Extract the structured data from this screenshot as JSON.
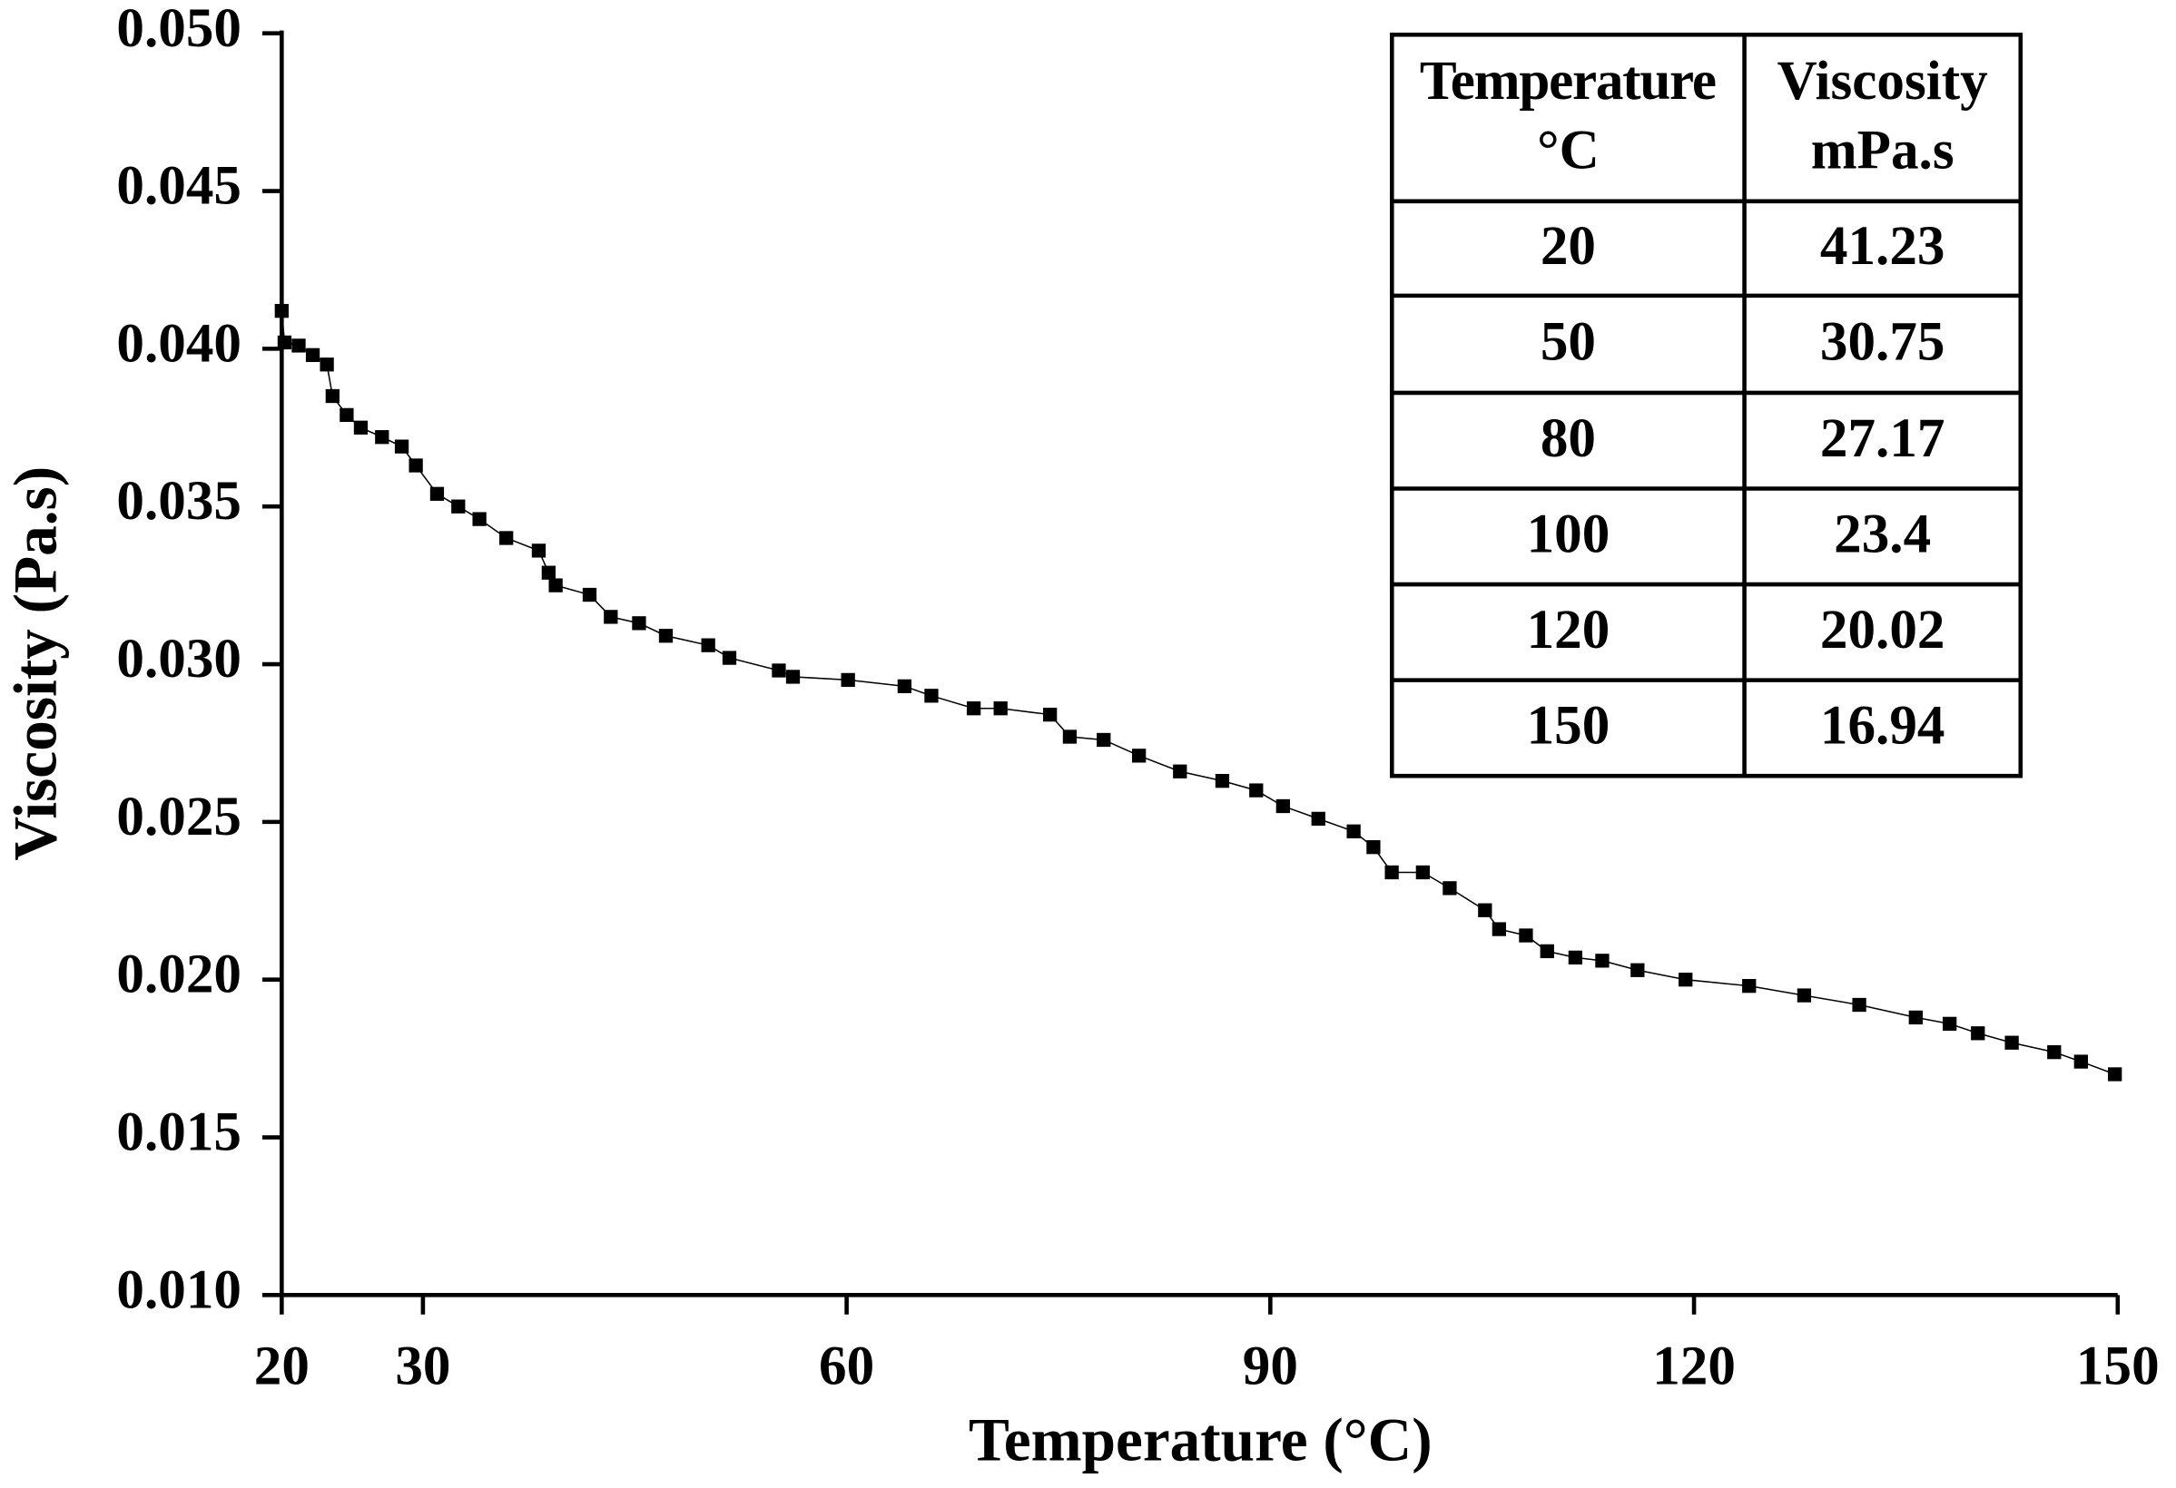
{
  "chart_data": {
    "type": "line",
    "xlabel": "Temperature (°C)",
    "ylabel": "Viscosity (Pa.s)",
    "xlim": [
      20,
      150
    ],
    "xticks": [
      20,
      30,
      60,
      90,
      120,
      150
    ],
    "ylim": [
      0.01,
      0.05
    ],
    "yticks": [
      {
        "value": 0.01,
        "label": "0.010"
      },
      {
        "value": 0.015,
        "label": "0.015"
      },
      {
        "value": 0.02,
        "label": "0.020"
      },
      {
        "value": 0.025,
        "label": "0.025"
      },
      {
        "value": 0.03,
        "label": "0.030"
      },
      {
        "value": 0.035,
        "label": "0.035"
      },
      {
        "value": 0.04,
        "label": "0.040"
      },
      {
        "value": 0.045,
        "label": "0.045"
      },
      {
        "value": 0.05,
        "label": "0.050"
      }
    ],
    "marker": "square",
    "color": "#000000",
    "x": [
      20.0,
      20.2,
      21.2,
      22.2,
      23.2,
      23.6,
      24.6,
      25.6,
      27.1,
      28.5,
      29.5,
      31.0,
      32.5,
      34.0,
      35.9,
      38.2,
      38.9,
      39.4,
      41.8,
      43.3,
      45.3,
      47.2,
      50.2,
      51.7,
      55.2,
      56.2,
      60.1,
      64.1,
      66.0,
      69.0,
      70.9,
      74.4,
      75.8,
      78.2,
      80.7,
      83.6,
      86.6,
      89.0,
      90.9,
      93.4,
      95.9,
      97.3,
      98.6,
      100.8,
      102.7,
      105.2,
      106.2,
      108.1,
      109.6,
      111.6,
      113.5,
      116.0,
      119.4,
      123.9,
      127.8,
      131.7,
      135.7,
      138.1,
      140.1,
      142.5,
      145.5,
      147.4,
      149.8
    ],
    "values": [
      0.0412,
      0.0402,
      0.0401,
      0.0398,
      0.0395,
      0.0385,
      0.0379,
      0.0375,
      0.0372,
      0.0369,
      0.0363,
      0.0354,
      0.035,
      0.0346,
      0.034,
      0.0336,
      0.0329,
      0.0325,
      0.0322,
      0.0315,
      0.0313,
      0.0309,
      0.0306,
      0.0302,
      0.0298,
      0.0296,
      0.0295,
      0.0293,
      0.029,
      0.0286,
      0.0286,
      0.0284,
      0.0277,
      0.0276,
      0.0271,
      0.0266,
      0.0263,
      0.026,
      0.0255,
      0.0251,
      0.0247,
      0.0242,
      0.0234,
      0.0234,
      0.0229,
      0.0222,
      0.0216,
      0.0214,
      0.0209,
      0.0207,
      0.0206,
      0.0203,
      0.02,
      0.0198,
      0.0195,
      0.0192,
      0.0188,
      0.0186,
      0.0183,
      0.018,
      0.0177,
      0.0174,
      0.017
    ],
    "table": {
      "header": [
        [
          "Temperature",
          "°C"
        ],
        [
          "Viscosity",
          "mPa.s"
        ]
      ],
      "rows": [
        [
          20,
          41.23
        ],
        [
          50,
          30.75
        ],
        [
          80,
          27.17
        ],
        [
          100,
          23.4
        ],
        [
          120,
          20.02
        ],
        [
          150,
          16.94
        ]
      ]
    }
  }
}
